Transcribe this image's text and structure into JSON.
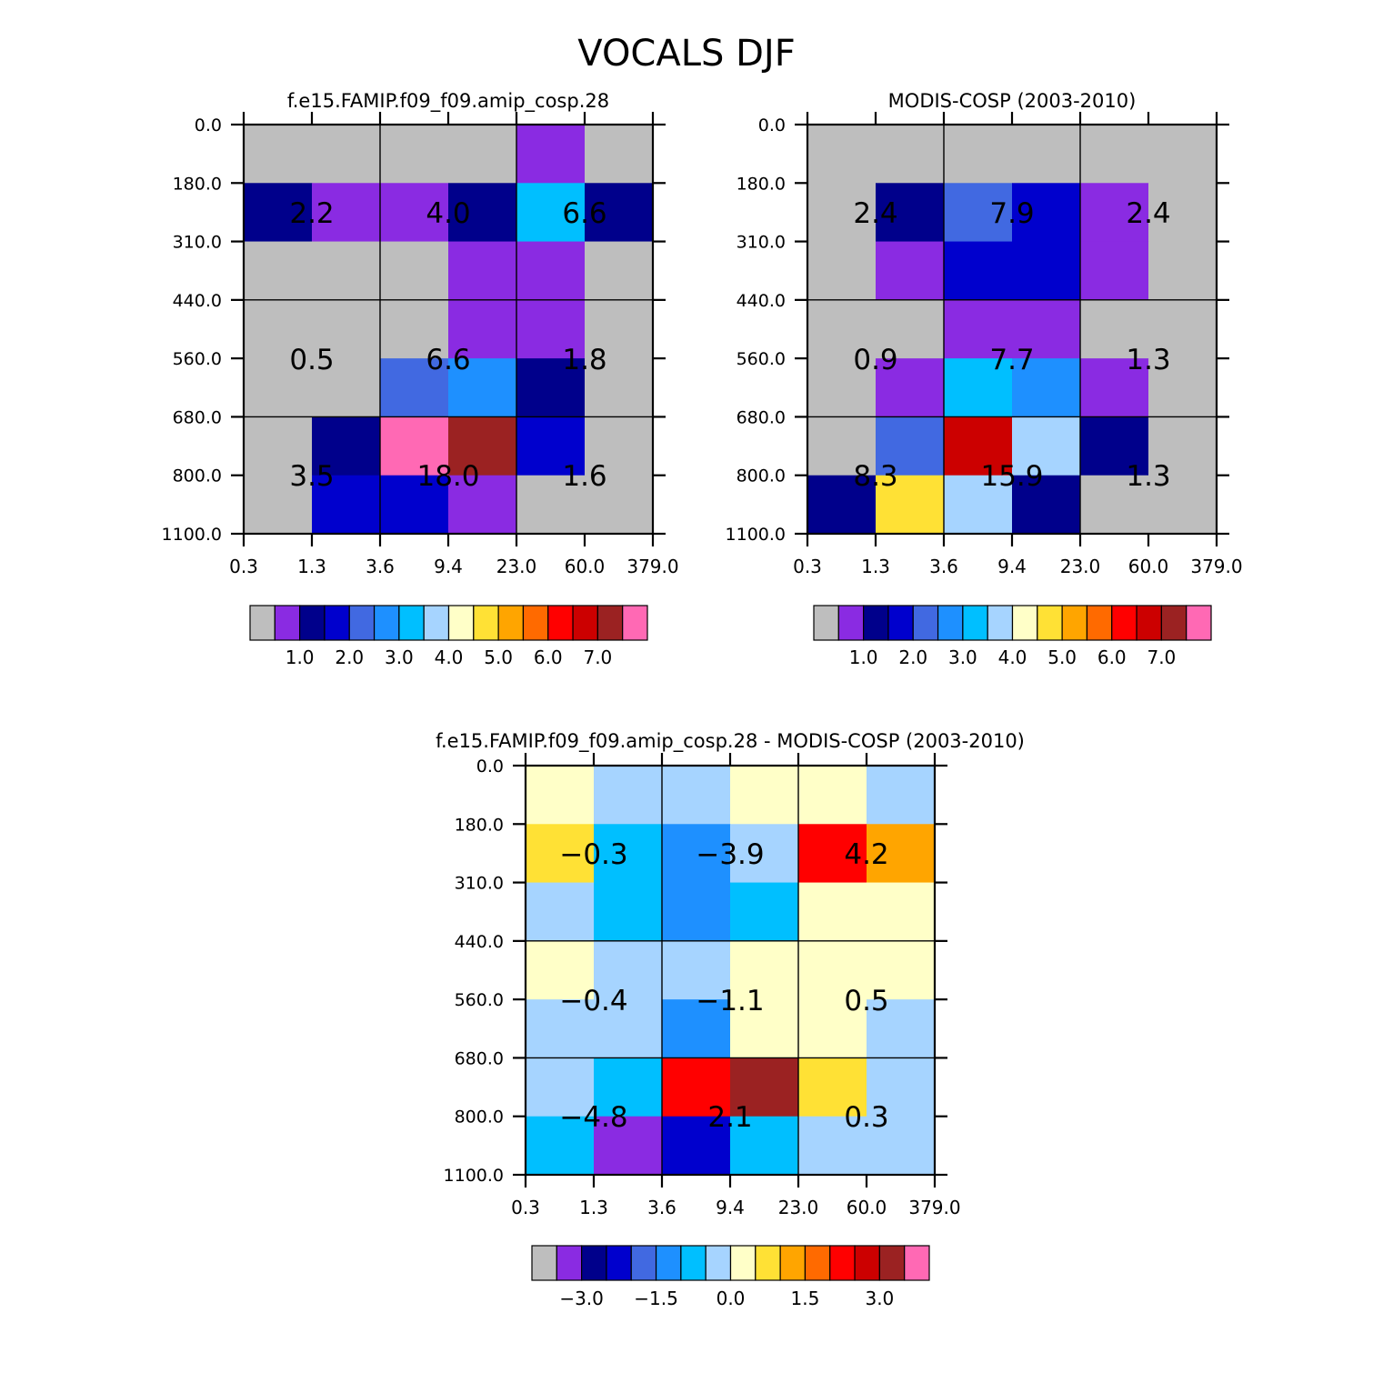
{
  "title": "VOCALS DJF",
  "chart_data": [
    {
      "type": "heatmap",
      "title": "f.e15.FAMIP.f09_f09.amip_cosp.28",
      "x_tick_labels": [
        "0.3",
        "1.3",
        "3.6",
        "9.4",
        "23.0",
        "60.0",
        "379.0"
      ],
      "y_tick_labels": [
        "0.0",
        "180.0",
        "310.0",
        "440.0",
        "560.0",
        "680.0",
        "800.0",
        "1100.0"
      ],
      "cell_colors": [
        [
          "#BEBEBE",
          "#BEBEBE",
          "#BEBEBE",
          "#BEBEBE",
          "#8A2BE2",
          "#BEBEBE"
        ],
        [
          "#00008B",
          "#8A2BE2",
          "#8A2BE2",
          "#00008B",
          "#00BFFF",
          "#00008B"
        ],
        [
          "#BEBEBE",
          "#BEBEBE",
          "#BEBEBE",
          "#8A2BE2",
          "#8A2BE2",
          "#BEBEBE"
        ],
        [
          "#BEBEBE",
          "#BEBEBE",
          "#BEBEBE",
          "#8A2BE2",
          "#8A2BE2",
          "#BEBEBE"
        ],
        [
          "#BEBEBE",
          "#BEBEBE",
          "#4169E1",
          "#1E90FF",
          "#00008B",
          "#BEBEBE"
        ],
        [
          "#BEBEBE",
          "#00008B",
          "#FF69B4",
          "#9B2222",
          "#0000CD",
          "#BEBEBE"
        ],
        [
          "#BEBEBE",
          "#0000CD",
          "#0000CD",
          "#8A2BE2",
          "#BEBEBE",
          "#BEBEBE"
        ]
      ],
      "block_values": [
        [
          "2.2",
          "4.0",
          "6.6"
        ],
        [
          "0.5",
          "6.6",
          "1.8"
        ],
        [
          "3.5",
          "18.0",
          "1.6"
        ]
      ],
      "colorbar": {
        "colors": [
          "#BEBEBE",
          "#8A2BE2",
          "#00008B",
          "#0000CD",
          "#4169E1",
          "#1E90FF",
          "#00BFFF",
          "#A6D4FF",
          "#FFFFC8",
          "#FFE135",
          "#FFA500",
          "#FF6A00",
          "#FF0000",
          "#CC0000",
          "#9B2222",
          "#FF69B4"
        ],
        "labels": [
          "1.0",
          "2.0",
          "3.0",
          "4.0",
          "5.0",
          "6.0",
          "7.0"
        ]
      }
    },
    {
      "type": "heatmap",
      "title": "MODIS-COSP (2003-2010)",
      "x_tick_labels": [
        "0.3",
        "1.3",
        "3.6",
        "9.4",
        "23.0",
        "60.0",
        "379.0"
      ],
      "y_tick_labels": [
        "0.0",
        "180.0",
        "310.0",
        "440.0",
        "560.0",
        "680.0",
        "800.0",
        "1100.0"
      ],
      "cell_colors": [
        [
          "#BEBEBE",
          "#BEBEBE",
          "#BEBEBE",
          "#BEBEBE",
          "#BEBEBE",
          "#BEBEBE"
        ],
        [
          "#BEBEBE",
          "#00008B",
          "#4169E1",
          "#0000CD",
          "#8A2BE2",
          "#BEBEBE"
        ],
        [
          "#BEBEBE",
          "#8A2BE2",
          "#0000CD",
          "#0000CD",
          "#8A2BE2",
          "#BEBEBE"
        ],
        [
          "#BEBEBE",
          "#BEBEBE",
          "#8A2BE2",
          "#8A2BE2",
          "#BEBEBE",
          "#BEBEBE"
        ],
        [
          "#BEBEBE",
          "#8A2BE2",
          "#00BFFF",
          "#1E90FF",
          "#8A2BE2",
          "#BEBEBE"
        ],
        [
          "#BEBEBE",
          "#4169E1",
          "#CC0000",
          "#A6D4FF",
          "#00008B",
          "#BEBEBE"
        ],
        [
          "#00008B",
          "#FFE135",
          "#A6D4FF",
          "#00008B",
          "#BEBEBE",
          "#BEBEBE"
        ]
      ],
      "block_values": [
        [
          "2.4",
          "7.9",
          "2.4"
        ],
        [
          "0.9",
          "7.7",
          "1.3"
        ],
        [
          "8.3",
          "15.9",
          "1.3"
        ]
      ],
      "colorbar": {
        "colors": [
          "#BEBEBE",
          "#8A2BE2",
          "#00008B",
          "#0000CD",
          "#4169E1",
          "#1E90FF",
          "#00BFFF",
          "#A6D4FF",
          "#FFFFC8",
          "#FFE135",
          "#FFA500",
          "#FF6A00",
          "#FF0000",
          "#CC0000",
          "#9B2222",
          "#FF69B4"
        ],
        "labels": [
          "1.0",
          "2.0",
          "3.0",
          "4.0",
          "5.0",
          "6.0",
          "7.0"
        ]
      }
    },
    {
      "type": "heatmap",
      "title": "f.e15.FAMIP.f09_f09.amip_cosp.28 - MODIS-COSP (2003-2010)",
      "x_tick_labels": [
        "0.3",
        "1.3",
        "3.6",
        "9.4",
        "23.0",
        "60.0",
        "379.0"
      ],
      "y_tick_labels": [
        "0.0",
        "180.0",
        "310.0",
        "440.0",
        "560.0",
        "680.0",
        "800.0",
        "1100.0"
      ],
      "cell_colors": [
        [
          "#FFFFC8",
          "#A6D4FF",
          "#A6D4FF",
          "#FFFFC8",
          "#FFFFC8",
          "#A6D4FF"
        ],
        [
          "#FFE135",
          "#00BFFF",
          "#1E90FF",
          "#A6D4FF",
          "#FF0000",
          "#FFA500"
        ],
        [
          "#A6D4FF",
          "#00BFFF",
          "#1E90FF",
          "#00BFFF",
          "#FFFFC8",
          "#FFFFC8"
        ],
        [
          "#FFFFC8",
          "#A6D4FF",
          "#A6D4FF",
          "#FFFFC8",
          "#FFFFC8",
          "#FFFFC8"
        ],
        [
          "#A6D4FF",
          "#A6D4FF",
          "#1E90FF",
          "#FFFFC8",
          "#FFFFC8",
          "#A6D4FF"
        ],
        [
          "#A6D4FF",
          "#00BFFF",
          "#FF0000",
          "#9B2222",
          "#FFE135",
          "#A6D4FF"
        ],
        [
          "#00BFFF",
          "#8A2BE2",
          "#0000CD",
          "#00BFFF",
          "#A6D4FF",
          "#A6D4FF"
        ]
      ],
      "block_values": [
        [
          "-0.3",
          "-3.9",
          "4.2"
        ],
        [
          "-0.4",
          "-1.1",
          "0.5"
        ],
        [
          "-4.8",
          "2.1",
          "0.3"
        ]
      ],
      "colorbar": {
        "colors": [
          "#BEBEBE",
          "#8A2BE2",
          "#00008B",
          "#0000CD",
          "#4169E1",
          "#1E90FF",
          "#00BFFF",
          "#A6D4FF",
          "#FFFFC8",
          "#FFE135",
          "#FFA500",
          "#FF6A00",
          "#FF0000",
          "#CC0000",
          "#9B2222",
          "#FF69B4"
        ],
        "labels": [
          "-3.0",
          "-1.5",
          "0.0",
          "1.5",
          "3.0"
        ]
      }
    }
  ]
}
